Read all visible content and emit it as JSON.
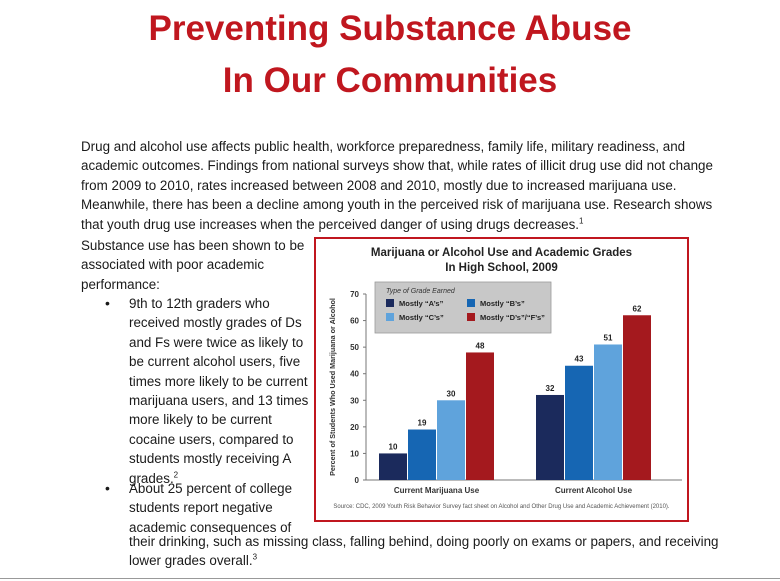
{
  "title_line1": "Preventing Substance Abuse",
  "title_line2": "In Our Communities",
  "intro": "Drug and alcohol use affects public health, workforce preparedness, family life, military readiness, and academic outcomes. Findings from national surveys show that, while rates of illicit drug use did not change from 2009 to 2010, rates increased between 2008 and 2010, mostly due to increased  marijuana use. Meanwhile, there has been a decline among youth in the perceived risk of marijuana use. Research shows that youth drug use increases when the perceived danger of using drugs decreases.",
  "intro_ref": "1",
  "lead": "Substance use has been shown to be associated with poor academic performance:",
  "bullet1": "9th to 12th graders who received mostly grades of Ds and Fs were twice as likely to be current alcohol users, five times more likely to be current marijuana users, and 13 times more likely to be current cocaine users, compared to students mostly receiving A grades.",
  "bullet1_ref": "2",
  "bullet2_part1": "About 25 percent of college students report negative academic consequences of",
  "bullet2_part2": "their drinking, such as missing class, falling behind, doing poorly on exams or papers, and receiving lower grades overall.",
  "bullet2_ref": "3",
  "chart_title_line1": "Marijuana or Alcohol Use and Academic Grades",
  "chart_title_line2": "In High School, 2009",
  "chart_source": "Source: CDC, 2009 Youth Risk Behavior Survey fact sheet on Alcohol and Other Drug Use and Academic Achievement (2010).",
  "chart_data": {
    "type": "bar",
    "categories": [
      "Current Marijuana Use",
      "Current Alcohol Use"
    ],
    "series": [
      {
        "name": "Mostly “A’s”",
        "values": [
          10,
          32
        ],
        "color": "#1b2a5c"
      },
      {
        "name": "Mostly “B’s”",
        "values": [
          19,
          43
        ],
        "color": "#1666b3"
      },
      {
        "name": "Mostly “C’s”",
        "values": [
          30,
          51
        ],
        "color": "#5fa3dc"
      },
      {
        "name": "Mostly “D’s”/“F’s”",
        "values": [
          48,
          62
        ],
        "color": "#a4191e"
      }
    ],
    "legend_title": "Type of Grade Earned",
    "legend_position": "top-left",
    "ylabel": "Percent of Students Who Used Marijuana or Alcohol",
    "ylim": [
      0,
      70
    ],
    "yticks": [
      0,
      10,
      20,
      30,
      40,
      50,
      60,
      70
    ],
    "grid": false
  }
}
